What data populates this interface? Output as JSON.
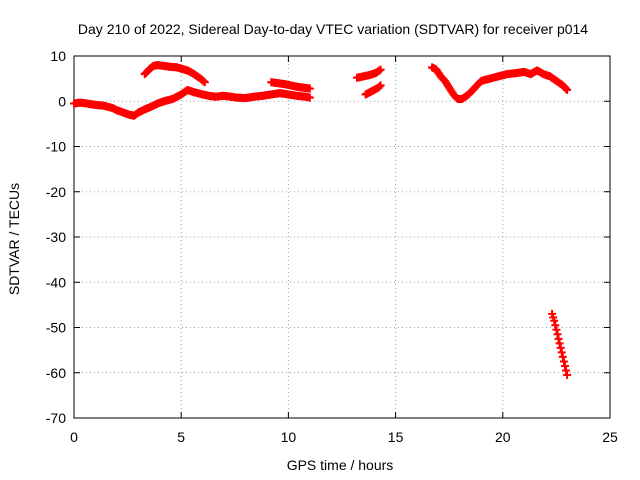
{
  "chart_data": {
    "type": "scatter",
    "title": "Day 210 of 2022, Sidereal Day-to-day VTEC variation (SDTVAR) for receiver p014",
    "xlabel": "GPS time / hours",
    "ylabel": "SDTVAR / TECUs",
    "xlim": [
      0,
      25
    ],
    "ylim": [
      -70,
      10
    ],
    "xticks": [
      0,
      5,
      10,
      15,
      20,
      25
    ],
    "yticks": [
      10,
      0,
      -10,
      -20,
      -30,
      -40,
      -50,
      -60,
      -70
    ],
    "grid": true,
    "marker": "plus",
    "series": [
      {
        "name": "SDTVAR",
        "color": "#ff0000",
        "segments": [
          {
            "x": [
              0.0,
              0.3,
              0.6,
              1.0,
              1.4,
              1.8,
              2.0,
              2.3,
              2.6,
              2.8,
              3.0,
              3.3,
              3.6,
              3.9,
              4.2,
              4.6,
              5.0,
              5.3,
              5.6,
              6.0,
              6.3,
              6.6,
              7.0,
              7.3,
              7.6,
              8.0,
              8.4,
              8.8,
              9.2,
              9.6,
              10.0,
              10.4,
              10.8,
              11.0
            ],
            "y": [
              -0.5,
              -0.3,
              -0.5,
              -0.8,
              -1.0,
              -1.5,
              -2.0,
              -2.5,
              -3.0,
              -3.2,
              -2.5,
              -1.8,
              -1.2,
              -0.5,
              0.0,
              0.5,
              1.5,
              2.5,
              2.0,
              1.5,
              1.2,
              1.0,
              1.2,
              1.0,
              0.8,
              0.7,
              1.0,
              1.2,
              1.5,
              1.8,
              1.5,
              1.2,
              1.0,
              0.8
            ]
          },
          {
            "x": [
              3.3,
              3.5,
              3.7,
              3.9,
              4.2,
              4.5,
              4.8,
              5.0,
              5.3,
              5.6,
              5.9,
              6.1
            ],
            "y": [
              6.0,
              7.0,
              7.8,
              8.0,
              7.8,
              7.6,
              7.5,
              7.2,
              6.8,
              6.0,
              5.0,
              4.2
            ]
          },
          {
            "x": [
              9.2,
              9.5,
              9.8,
              10.1,
              10.4,
              10.7,
              11.0
            ],
            "y": [
              4.2,
              4.0,
              3.8,
              3.5,
              3.2,
              3.0,
              2.8
            ]
          },
          {
            "x": [
              13.2,
              13.5,
              13.8,
              14.1,
              14.3
            ],
            "y": [
              5.2,
              5.5,
              5.8,
              6.3,
              7.0
            ]
          },
          {
            "x": [
              13.6,
              13.8,
              14.0,
              14.2,
              14.3
            ],
            "y": [
              1.5,
              2.0,
              2.5,
              3.0,
              3.5
            ]
          },
          {
            "x": [
              16.7,
              16.9,
              17.1,
              17.3,
              17.5,
              17.7,
              17.9,
              18.1,
              18.4,
              18.7,
              19.0,
              19.4,
              19.8,
              20.2,
              20.6,
              21.0,
              21.3,
              21.6,
              21.9,
              22.2,
              22.5,
              22.8,
              23.0
            ],
            "y": [
              7.5,
              7.0,
              5.5,
              4.5,
              3.0,
              1.5,
              0.5,
              0.5,
              1.5,
              3.0,
              4.5,
              5.0,
              5.5,
              6.0,
              6.2,
              6.5,
              6.0,
              6.8,
              6.0,
              5.5,
              4.5,
              3.5,
              2.5
            ]
          },
          {
            "x": [
              22.3,
              22.4,
              22.5,
              22.6,
              22.7,
              22.8,
              22.9,
              23.0
            ],
            "y": [
              -47.0,
              -48.5,
              -50.5,
              -52.5,
              -54.5,
              -56.5,
              -58.5,
              -60.5
            ]
          }
        ]
      }
    ]
  }
}
